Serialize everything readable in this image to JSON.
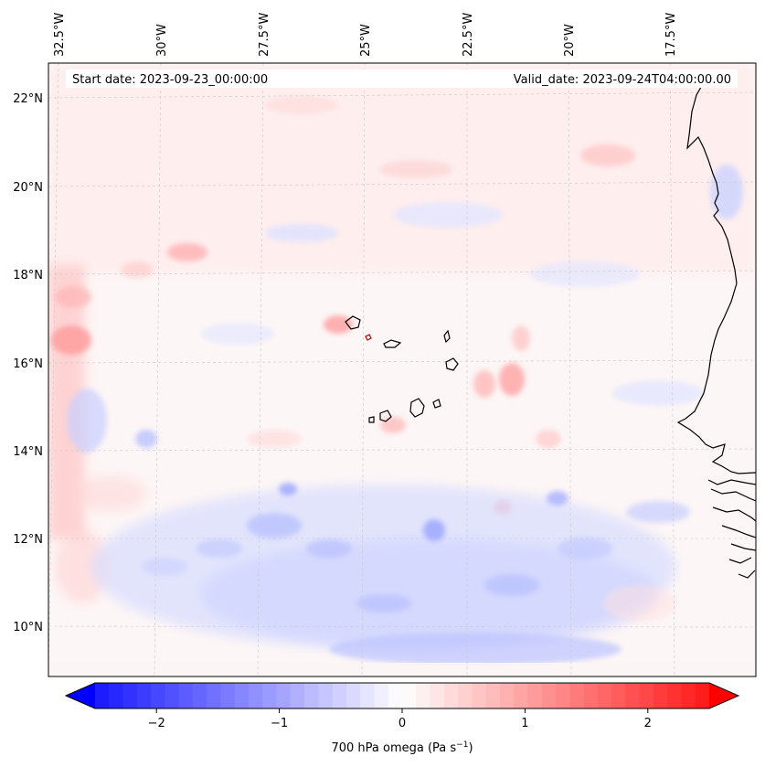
{
  "header": {
    "start_date": "Start date: 2023-09-23_00:00:00",
    "valid_date": "Valid_date: 2023-09-24T04:00:00.00"
  },
  "map": {
    "projection": "lambert-conformal",
    "lon_range_deg": [
      -32.8,
      -14.2
    ],
    "lat_range_deg": [
      8.8,
      22.8
    ],
    "gridlines": true,
    "lon_ticks": [
      "32.5°W",
      "30°W",
      "27.5°W",
      "25°W",
      "22.5°W",
      "20°W",
      "17.5°W"
    ],
    "lat_ticks": [
      "22°N",
      "20°N",
      "18°N",
      "16°N",
      "14°N",
      "12°N",
      "10°N"
    ],
    "field": "700 hPa omega",
    "coastline_color": "#000000",
    "features": [
      "West African coastline (Mauritania, Senegal, Gambia, Guinea-Bissau)",
      "Cape Verde islands"
    ]
  },
  "colorbar": {
    "cmap": "bwr",
    "vmin": -2.75,
    "vmax": 2.75,
    "extend": "both",
    "tick_values": [
      -2,
      -1,
      0,
      1,
      2
    ],
    "tick_labels": [
      "−2",
      "−1",
      "0",
      "1",
      "2"
    ],
    "label": "700 hPa omega (Pa s",
    "label_exponent": "−1",
    "label_close": ")",
    "colors": {
      "min": "#0000ff",
      "mid": "#ffffff",
      "max": "#ff0000"
    }
  }
}
